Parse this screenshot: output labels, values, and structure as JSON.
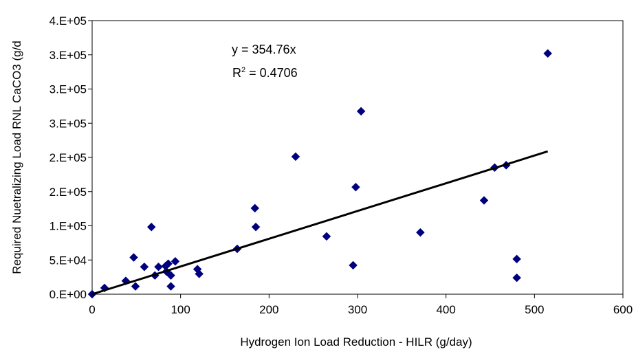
{
  "chart_data": {
    "type": "scatter",
    "title": "",
    "xlabel": "Hydrogen Ion Load Reduction - HILR (g/day)",
    "ylabel": "Required Nuetralizing Load RNL CaCO3 (g/d",
    "x_ticks": [
      "0",
      "100",
      "200",
      "300",
      "400",
      "500",
      "600"
    ],
    "y_ticks": [
      "0.E+00",
      "5.E+04",
      "1.E+05",
      "2.E+05",
      "2.E+05",
      "3.E+05",
      "3.E+05",
      "3.E+05",
      "4.E+05"
    ],
    "xlim": [
      0,
      600
    ],
    "ylim": [
      0,
      350000
    ],
    "grid": false,
    "marker": "diamond",
    "marker_color": "#00007f",
    "trendline": {
      "equation": "y = 354.76x",
      "r2_label": "R",
      "r2_sup": "2",
      "r2_value": " = 0.4706",
      "slope": 354.76,
      "x_range": [
        0,
        515
      ]
    },
    "points": [
      {
        "x": 0,
        "y": 0
      },
      {
        "x": 14,
        "y": 8000
      },
      {
        "x": 38,
        "y": 17000
      },
      {
        "x": 47,
        "y": 47000
      },
      {
        "x": 49,
        "y": 10000
      },
      {
        "x": 59,
        "y": 35000
      },
      {
        "x": 67,
        "y": 86000
      },
      {
        "x": 71,
        "y": 24000
      },
      {
        "x": 75,
        "y": 35000
      },
      {
        "x": 83,
        "y": 36000
      },
      {
        "x": 84,
        "y": 29000
      },
      {
        "x": 86,
        "y": 39000
      },
      {
        "x": 89,
        "y": 24000
      },
      {
        "x": 89,
        "y": 10000
      },
      {
        "x": 94,
        "y": 42000
      },
      {
        "x": 119,
        "y": 32000
      },
      {
        "x": 121,
        "y": 26000
      },
      {
        "x": 164,
        "y": 58000
      },
      {
        "x": 184,
        "y": 110000
      },
      {
        "x": 185,
        "y": 86000
      },
      {
        "x": 230,
        "y": 176000
      },
      {
        "x": 265,
        "y": 74000
      },
      {
        "x": 295,
        "y": 37000
      },
      {
        "x": 298,
        "y": 137000
      },
      {
        "x": 304,
        "y": 234000
      },
      {
        "x": 371,
        "y": 79000
      },
      {
        "x": 443,
        "y": 120000
      },
      {
        "x": 455,
        "y": 162000
      },
      {
        "x": 468,
        "y": 165000
      },
      {
        "x": 480,
        "y": 45000
      },
      {
        "x": 480,
        "y": 21000
      },
      {
        "x": 515,
        "y": 308000
      }
    ]
  }
}
